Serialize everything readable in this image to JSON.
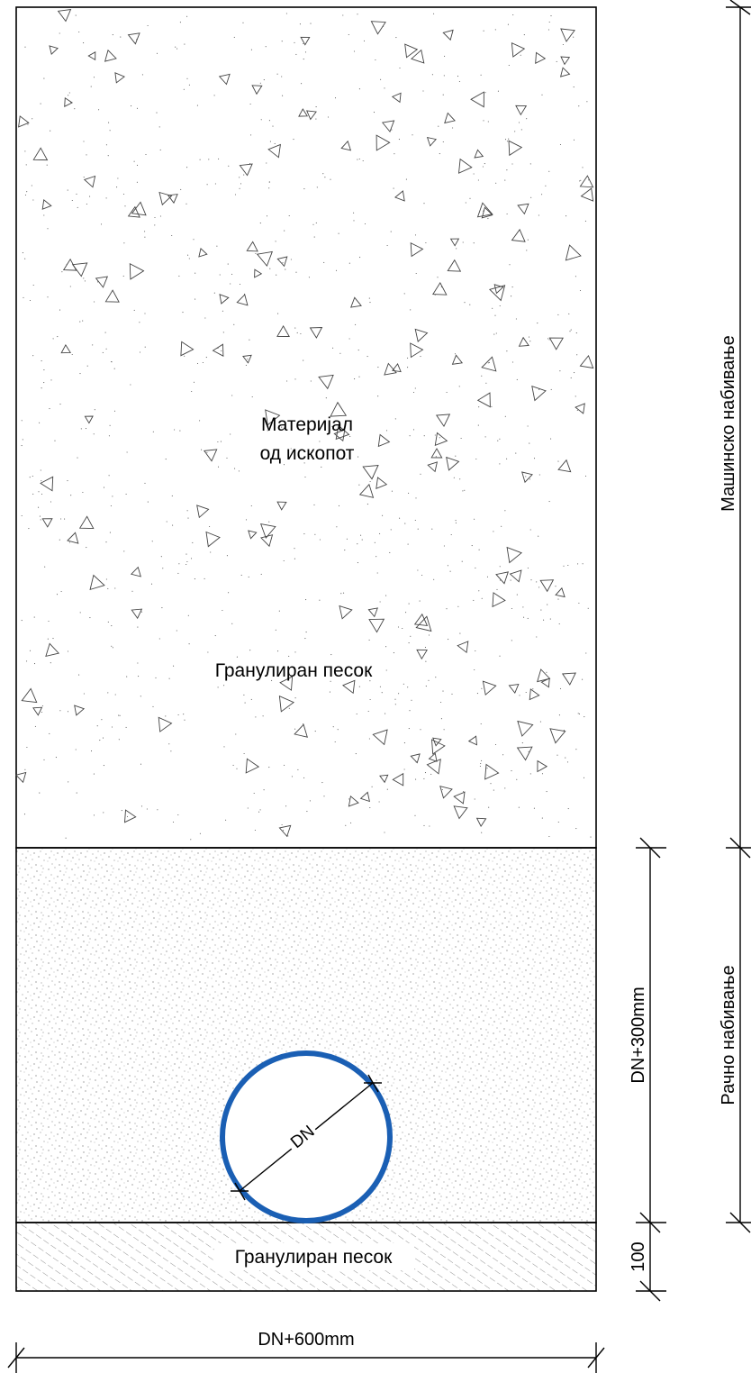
{
  "layers": {
    "excavated_material": {
      "label_line1": "Материјал",
      "label_line2": "од ископот"
    },
    "sand_fill": {
      "label": "Гранулиран песок"
    },
    "sand_bedding": {
      "label": "Гранулиран песок"
    }
  },
  "pipe": {
    "label": "DN",
    "color": "#1a5fb4"
  },
  "dimensions": {
    "width": "DN+600mm",
    "fill_height": "DN+300mm",
    "bedding_height": "100"
  },
  "compaction": {
    "machine": "Машинско набивање",
    "manual": "Рачно набивање"
  }
}
